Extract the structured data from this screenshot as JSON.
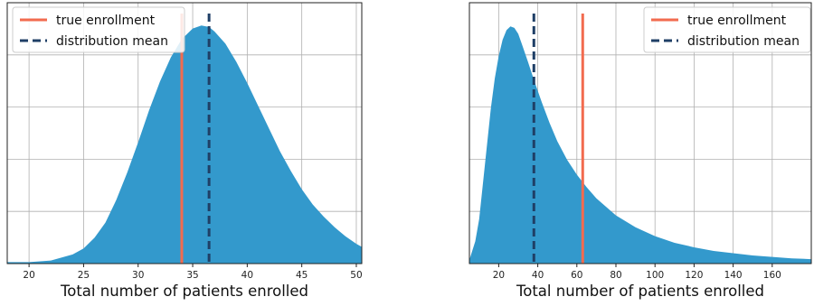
{
  "chart_data": [
    {
      "type": "area",
      "xlim": [
        18,
        50.5
      ],
      "xticks": [
        20,
        25,
        30,
        35,
        40,
        45,
        50
      ],
      "xlabel": "Total number of patients enrolled",
      "ylabel": "",
      "grid": true,
      "legend_position": "top-left",
      "fill_color": "#3399cc",
      "density": {
        "x": [
          18,
          20,
          22,
          24,
          25,
          26,
          27,
          28,
          29,
          30,
          31,
          32,
          33,
          34,
          35,
          35.8,
          36.5,
          37,
          38,
          39,
          40,
          41,
          42,
          43,
          44,
          45,
          46,
          47,
          48,
          49,
          50,
          50.5
        ],
        "y": [
          0.001,
          0.001,
          0.002,
          0.006,
          0.01,
          0.017,
          0.027,
          0.042,
          0.06,
          0.08,
          0.101,
          0.12,
          0.136,
          0.148,
          0.155,
          0.157,
          0.156,
          0.153,
          0.145,
          0.133,
          0.119,
          0.104,
          0.089,
          0.074,
          0.061,
          0.049,
          0.039,
          0.031,
          0.024,
          0.018,
          0.013,
          0.011
        ]
      },
      "y_range": [
        0,
        0.172
      ],
      "vertical_lines": [
        {
          "name": "true enrollment",
          "x": 34,
          "color": "#f26b4f",
          "style": "solid"
        },
        {
          "name": "distribution mean",
          "x": 36.5,
          "color": "#1f3f66",
          "style": "dashed"
        }
      ]
    },
    {
      "type": "area",
      "xlim": [
        5,
        180
      ],
      "xticks": [
        20,
        40,
        60,
        80,
        100,
        120,
        140,
        160
      ],
      "xlabel": "Total number of patients enrolled",
      "ylabel": "",
      "grid": true,
      "legend_position": "top-right",
      "fill_color": "#3399cc",
      "density": {
        "x": [
          5,
          8,
          10,
          12,
          14,
          16,
          18,
          20,
          22,
          24,
          26,
          28,
          30,
          32,
          35,
          38,
          42,
          46,
          50,
          55,
          60,
          65,
          70,
          80,
          90,
          100,
          110,
          120,
          130,
          140,
          150,
          160,
          170,
          180
        ],
        "y": [
          0.0005,
          0.003,
          0.006,
          0.011,
          0.016,
          0.021,
          0.025,
          0.028,
          0.0302,
          0.0315,
          0.032,
          0.0318,
          0.031,
          0.0295,
          0.0272,
          0.0248,
          0.0218,
          0.019,
          0.0165,
          0.014,
          0.012,
          0.0103,
          0.0088,
          0.0065,
          0.0049,
          0.0037,
          0.0028,
          0.0022,
          0.0017,
          0.0014,
          0.0011,
          0.0009,
          0.0007,
          0.0006
        ]
      },
      "y_range": [
        0,
        0.0352
      ],
      "vertical_lines": [
        {
          "name": "true enrollment",
          "x": 63,
          "color": "#f26b4f",
          "style": "solid"
        },
        {
          "name": "distribution mean",
          "x": 38,
          "color": "#1f3f66",
          "style": "dashed"
        }
      ]
    }
  ]
}
